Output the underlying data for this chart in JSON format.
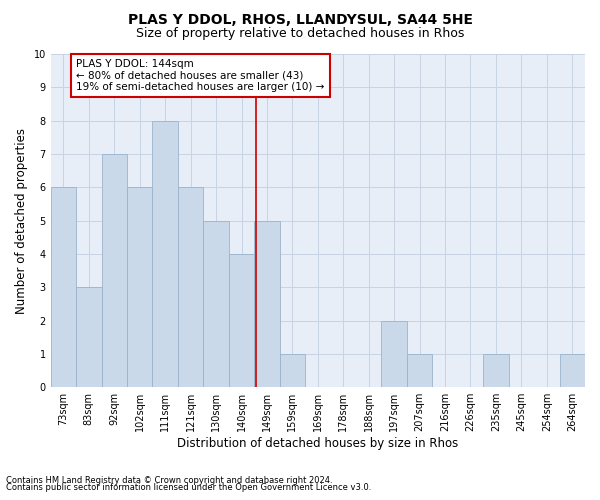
{
  "title": "PLAS Y DDOL, RHOS, LLANDYSUL, SA44 5HE",
  "subtitle": "Size of property relative to detached houses in Rhos",
  "xlabel": "Distribution of detached houses by size in Rhos",
  "ylabel": "Number of detached properties",
  "footer_line1": "Contains HM Land Registry data © Crown copyright and database right 2024.",
  "footer_line2": "Contains public sector information licensed under the Open Government Licence v3.0.",
  "bin_labels": [
    "73sqm",
    "83sqm",
    "92sqm",
    "102sqm",
    "111sqm",
    "121sqm",
    "130sqm",
    "140sqm",
    "149sqm",
    "159sqm",
    "169sqm",
    "178sqm",
    "188sqm",
    "197sqm",
    "207sqm",
    "216sqm",
    "226sqm",
    "235sqm",
    "245sqm",
    "254sqm",
    "264sqm"
  ],
  "bar_values": [
    6,
    3,
    7,
    6,
    8,
    6,
    5,
    4,
    5,
    1,
    0,
    0,
    0,
    2,
    1,
    0,
    0,
    1,
    0,
    0,
    1
  ],
  "bar_color": "#c9d9ea",
  "bar_edge_color": "#9ab4cc",
  "grid_color": "#c8d4e4",
  "vline_x": 7.56,
  "vline_color": "#cc0000",
  "annotation_text": "PLAS Y DDOL: 144sqm\n← 80% of detached houses are smaller (43)\n19% of semi-detached houses are larger (10) →",
  "annotation_box_color": "#cc0000",
  "ylim": [
    0,
    10
  ],
  "yticks": [
    0,
    1,
    2,
    3,
    4,
    5,
    6,
    7,
    8,
    9,
    10
  ],
  "background_color": "#e8eef8",
  "title_fontsize": 10,
  "subtitle_fontsize": 9,
  "xlabel_fontsize": 8.5,
  "ylabel_fontsize": 8.5,
  "tick_fontsize": 7,
  "annotation_fontsize": 7.5,
  "footer_fontsize": 6
}
